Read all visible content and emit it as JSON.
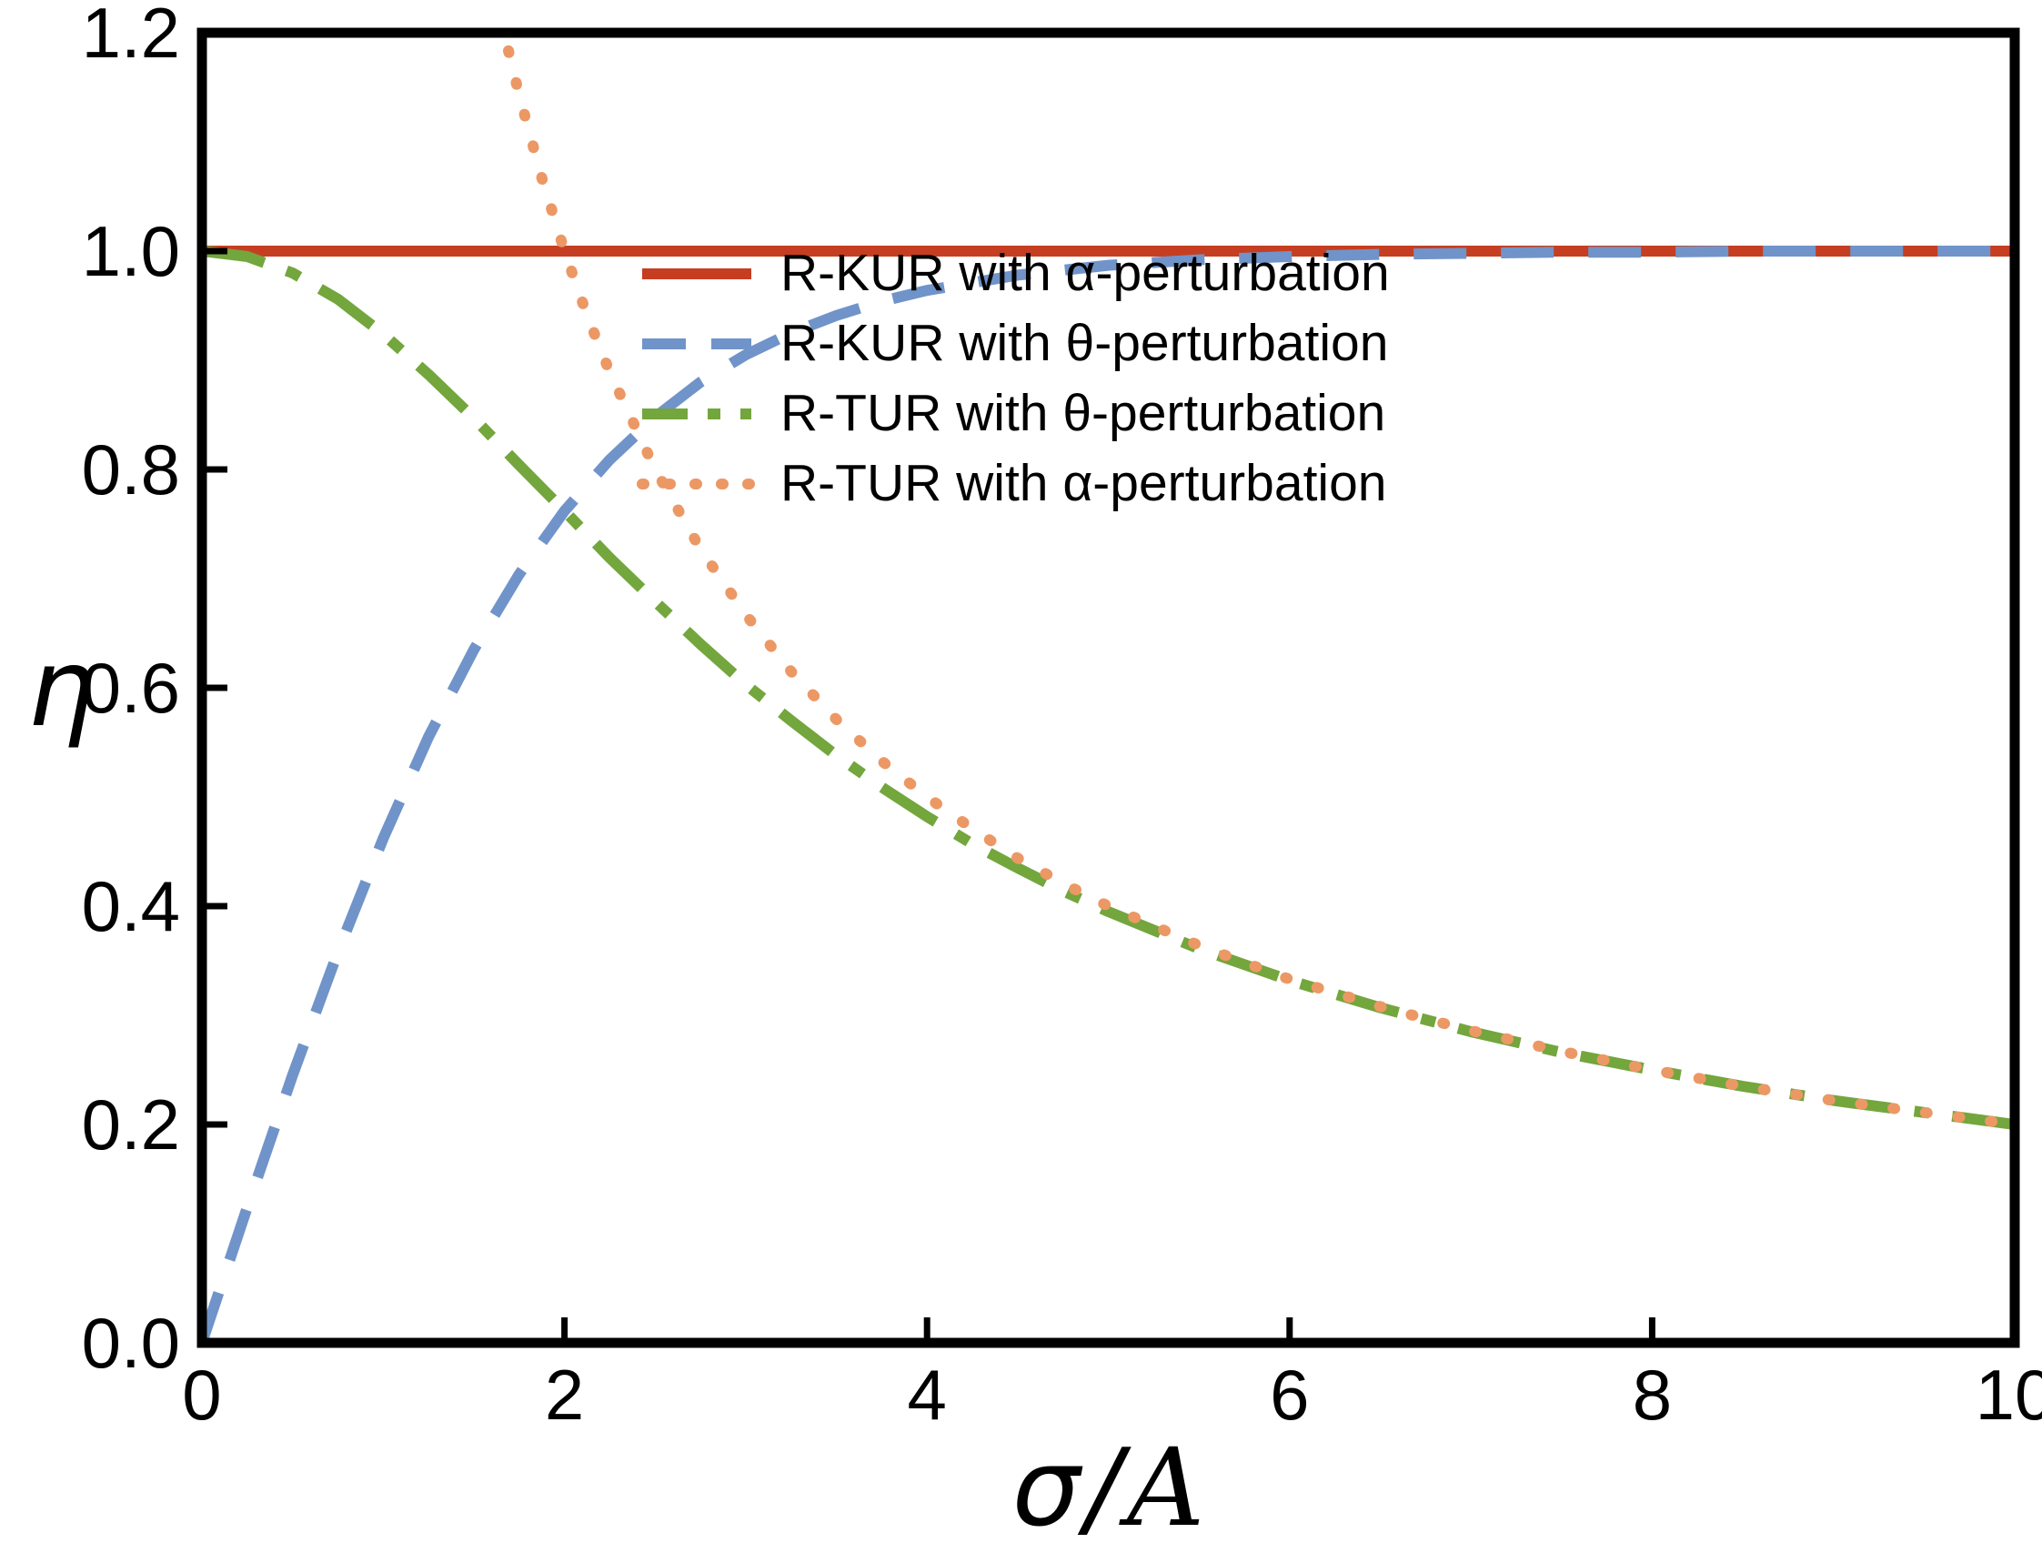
{
  "figure": {
    "background": "#ffffff",
    "axis_color": "#000000"
  },
  "chart_data": {
    "type": "line",
    "title": "",
    "xlabel": "σ/𝒜",
    "ylabel": "η",
    "xlim": [
      0,
      10
    ],
    "ylim": [
      0,
      1.2
    ],
    "grid": false,
    "frame": true,
    "legend_position": "upper-right-inside",
    "xticks": [
      0,
      2,
      4,
      6,
      8,
      10
    ],
    "xtick_labels": [
      "0",
      "2",
      "4",
      "6",
      "8",
      "10"
    ],
    "yticks": [
      0,
      0.2,
      0.4,
      0.6,
      0.8,
      1.0,
      1.2
    ],
    "ytick_labels": [
      "0.0",
      "0.2",
      "0.4",
      "0.6",
      "0.8",
      "1.0",
      "1.2"
    ],
    "series": [
      {
        "key": "r-kur-alpha",
        "name": "R-KUR with α-perturbation",
        "color": "#c63e21",
        "style": "solid",
        "x": [
          0,
          10
        ],
        "y": [
          1.0,
          1.0
        ]
      },
      {
        "key": "r-kur-theta",
        "name": "R-KUR with θ-perturbation",
        "color": "#7094c9",
        "style": "dashed",
        "x": [
          0,
          0.25,
          0.5,
          0.75,
          1,
          1.25,
          1.5,
          1.75,
          2,
          2.25,
          2.5,
          2.75,
          3,
          3.25,
          3.5,
          3.75,
          4,
          4.5,
          5,
          5.5,
          6,
          6.5,
          7,
          7.5,
          8,
          8.5,
          9,
          9.5,
          10
        ],
        "y": [
          0,
          0.124,
          0.245,
          0.358,
          0.462,
          0.555,
          0.635,
          0.704,
          0.762,
          0.809,
          0.848,
          0.88,
          0.905,
          0.925,
          0.941,
          0.954,
          0.964,
          0.978,
          0.987,
          0.992,
          0.995,
          0.997,
          0.998,
          0.999,
          0.999,
          1.0,
          1.0,
          1.0,
          1.0
        ]
      },
      {
        "key": "r-tur-theta",
        "name": "R-TUR with θ-perturbation",
        "color": "#73a63d",
        "style": "dashdot",
        "x": [
          0,
          0.25,
          0.5,
          0.75,
          1,
          1.25,
          1.5,
          1.75,
          2,
          2.25,
          2.5,
          2.75,
          3,
          3.25,
          3.5,
          3.75,
          4,
          4.25,
          4.5,
          4.75,
          5,
          5.5,
          6,
          6.5,
          7,
          7.5,
          8,
          8.5,
          9,
          9.5,
          10
        ],
        "y": [
          1,
          0.995,
          0.98,
          0.956,
          0.924,
          0.887,
          0.847,
          0.804,
          0.762,
          0.719,
          0.679,
          0.64,
          0.603,
          0.57,
          0.538,
          0.509,
          0.482,
          0.457,
          0.435,
          0.414,
          0.395,
          0.361,
          0.332,
          0.307,
          0.285,
          0.266,
          0.25,
          0.235,
          0.222,
          0.211,
          0.2
        ]
      },
      {
        "key": "r-tur-alpha",
        "name": "R-TUR with α-perturbation",
        "color": "#ec9865",
        "style": "dotted",
        "x": [
          1.61,
          1.667,
          1.75,
          1.875,
          2,
          2.125,
          2.25,
          2.5,
          2.75,
          3,
          3.25,
          3.5,
          3.75,
          4,
          4.25,
          4.5,
          4.75,
          5,
          5.5,
          6,
          6.5,
          7,
          7.5,
          8,
          8.5,
          9,
          9.5,
          10
        ],
        "y": [
          1.242,
          1.2,
          1.143,
          1.067,
          1.0,
          0.941,
          0.889,
          0.8,
          0.727,
          0.667,
          0.615,
          0.571,
          0.533,
          0.5,
          0.471,
          0.444,
          0.421,
          0.4,
          0.364,
          0.333,
          0.308,
          0.286,
          0.267,
          0.25,
          0.235,
          0.222,
          0.211,
          0.2
        ]
      }
    ]
  },
  "labels": {
    "ylabel": "η",
    "xlabel_sigma": "σ",
    "xlabel_slash": "/",
    "xlabel_A": "A"
  }
}
